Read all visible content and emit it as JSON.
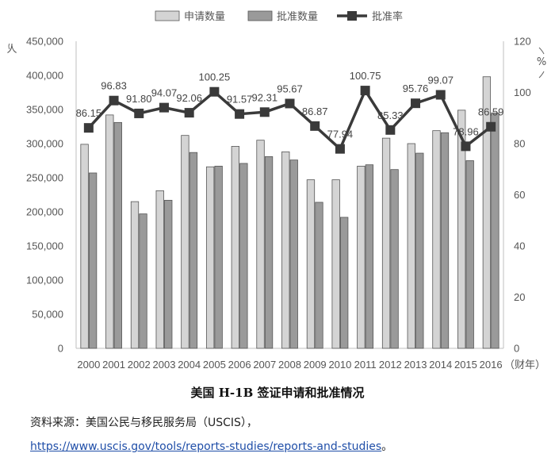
{
  "chart_data": {
    "type": "bar",
    "title": "美国 H-1B 签证申请和批准情况",
    "categories": [
      "2000",
      "2001",
      "2002",
      "2003",
      "2004",
      "2005",
      "2006",
      "2007",
      "2008",
      "2009",
      "2010",
      "2011",
      "2012",
      "2013",
      "2014",
      "2015",
      "2016"
    ],
    "series": [
      {
        "name": "申请数量",
        "kind": "bar",
        "axis": "left",
        "color": "#d4d4d4",
        "values": [
          299000,
          342000,
          215000,
          231000,
          312000,
          266000,
          296000,
          305000,
          288000,
          247000,
          247000,
          267000,
          308000,
          300000,
          319000,
          349000,
          398000
        ]
      },
      {
        "name": "批准数量",
        "kind": "bar",
        "axis": "left",
        "color": "#9a9a9a",
        "values": [
          257000,
          331000,
          197000,
          217000,
          287000,
          267000,
          271000,
          281000,
          276000,
          214000,
          192000,
          269000,
          262000,
          286000,
          316000,
          275000,
          345000
        ]
      },
      {
        "name": "批准率",
        "kind": "line",
        "axis": "right",
        "color": "#3a3a3a",
        "values": [
          86.15,
          96.83,
          91.8,
          94.07,
          92.06,
          100.25,
          91.57,
          92.31,
          95.67,
          86.87,
          77.94,
          100.75,
          85.33,
          95.76,
          99.07,
          78.96,
          86.59
        ],
        "labels": [
          "86.15",
          "96.83",
          "91.80",
          "94.07",
          "92.06",
          "100.25",
          "91.57",
          "92.31",
          "95.67",
          "86.87",
          "77.94",
          "100.75",
          "85.33",
          "95.76",
          "99.07",
          "78.96",
          "86.59"
        ]
      }
    ],
    "y_left": {
      "min": 0,
      "max": 450000,
      "step": 50000,
      "unit": "人",
      "tick_labels": [
        "0",
        "50,000",
        "100,000",
        "150,000",
        "200,000",
        "250,000",
        "300,000",
        "350,000",
        "400,000",
        "450,000"
      ]
    },
    "y_right": {
      "min": 0,
      "max": 120,
      "step": 20,
      "unit": "%",
      "tick_labels": [
        "0",
        "20",
        "40",
        "60",
        "80",
        "100",
        "120"
      ]
    },
    "x_unit": "（财年）",
    "legend_position": "top",
    "grid": false
  },
  "caption": {
    "title": "美国 H-1B 签证申请和批准情况",
    "source": "资料来源：美国公民与移民服务局（USCIS），",
    "url": "https://www.uscis.gov/tools/reports-studies/reports-and-studies",
    "url_suffix": "。"
  }
}
